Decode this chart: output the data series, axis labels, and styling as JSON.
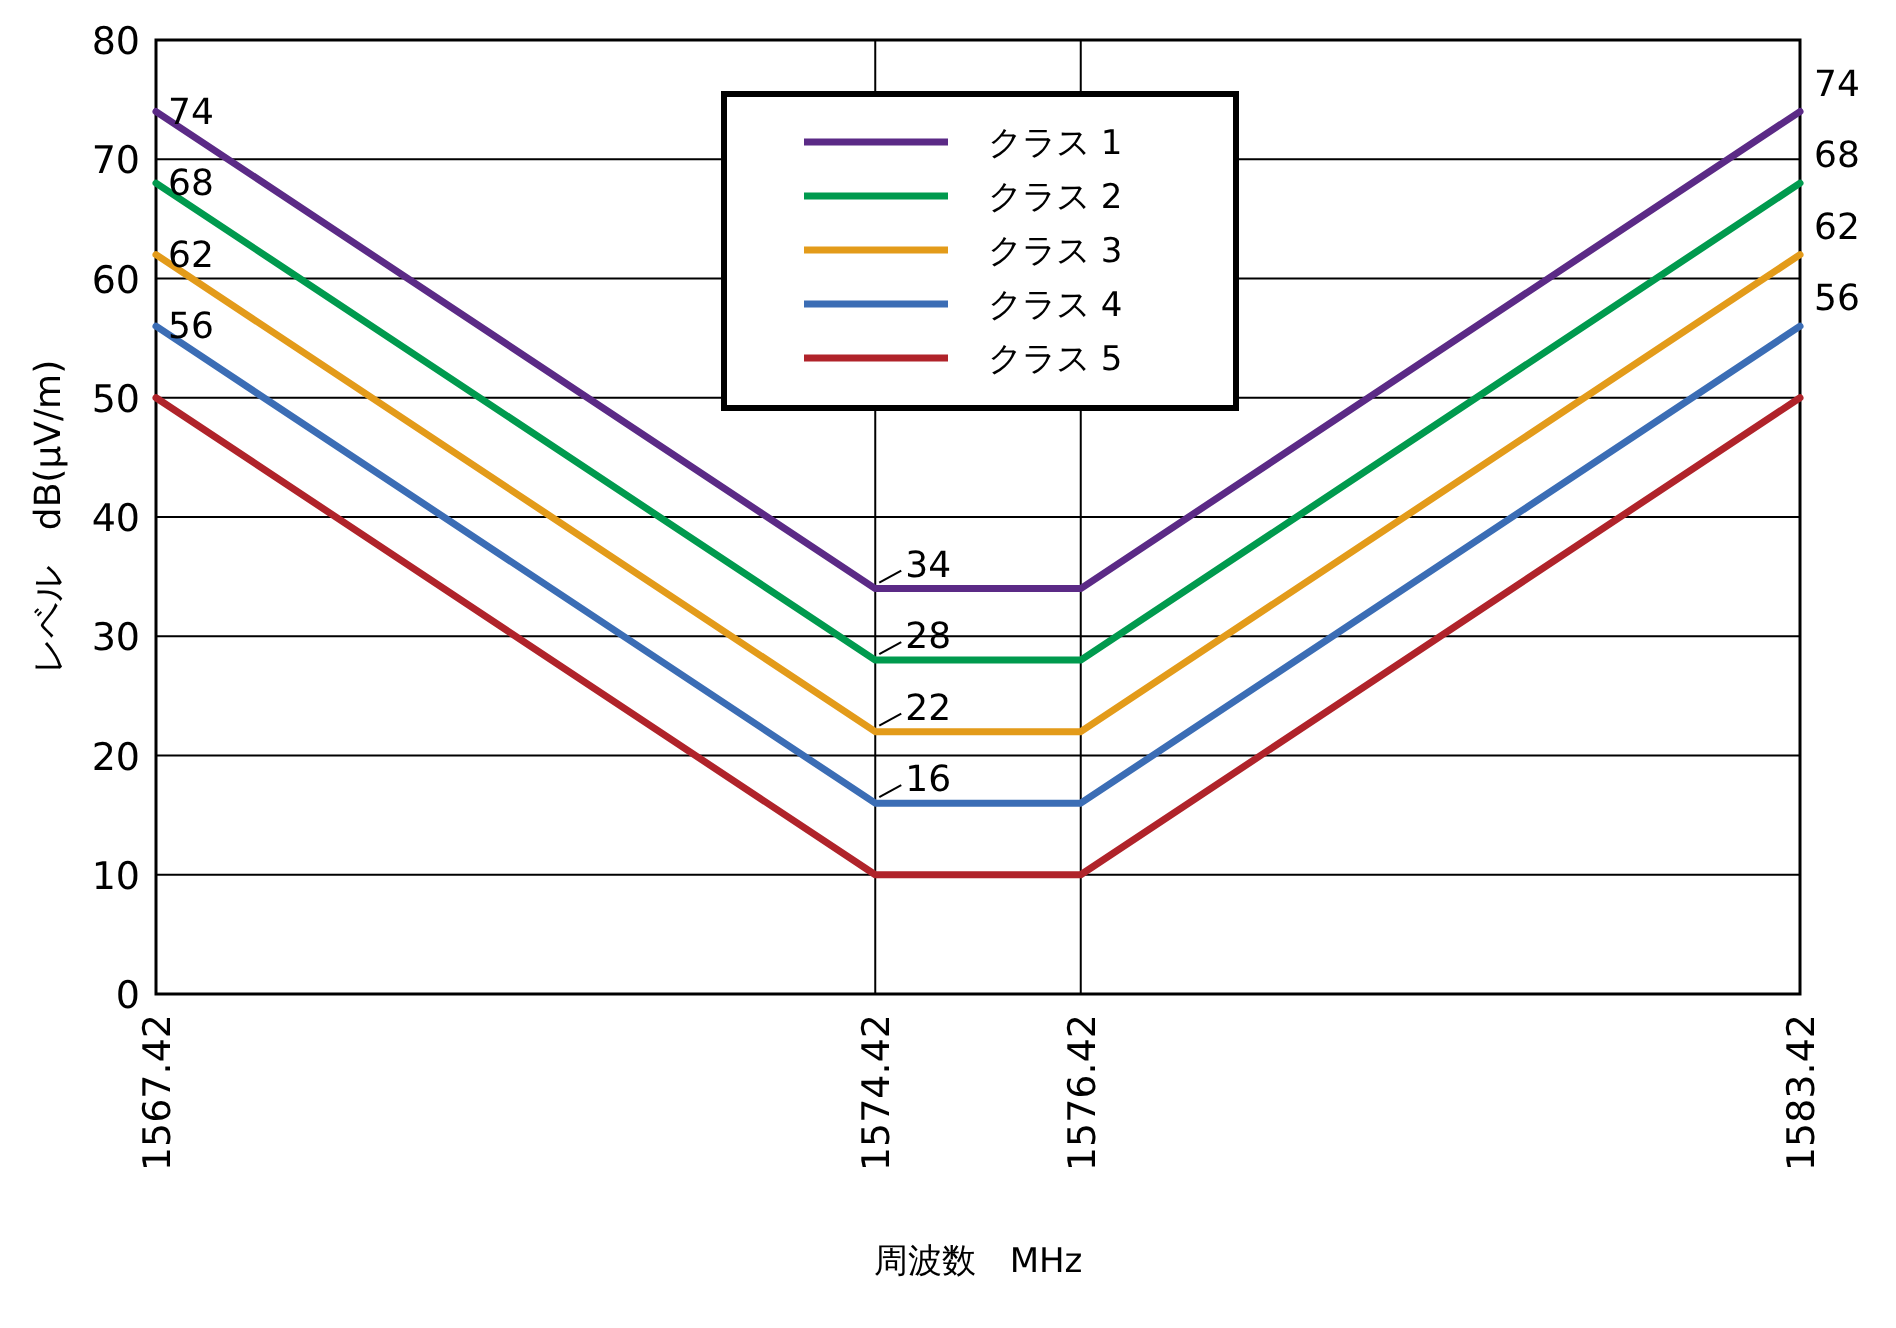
{
  "chart_data": {
    "type": "line",
    "xlabel": "周波数　MHz",
    "ylabel": "レベル　dB(μV/m)",
    "x": [
      1567.42,
      1574.42,
      1576.42,
      1583.42
    ],
    "xlim": [
      1567.42,
      1583.42
    ],
    "xticks": [
      1567.42,
      1574.42,
      1576.42,
      1583.42
    ],
    "ylim": [
      0,
      80
    ],
    "yticks": [
      0,
      10,
      20,
      30,
      40,
      50,
      60,
      70,
      80
    ],
    "grid": true,
    "legend": "top",
    "marker": "none",
    "line_style": "solid",
    "series": [
      {
        "name": "クラス 1",
        "color": "#5b2a86",
        "values": [
          74,
          34,
          34,
          74
        ],
        "value_labels": [
          "74",
          "34",
          null,
          "74"
        ]
      },
      {
        "name": "クラス 2",
        "color": "#009a4e",
        "values": [
          68,
          28,
          28,
          68
        ],
        "value_labels": [
          "68",
          "28",
          null,
          "68"
        ]
      },
      {
        "name": "クラス 3",
        "color": "#e39b1a",
        "values": [
          62,
          22,
          22,
          62
        ],
        "value_labels": [
          "62",
          "22",
          null,
          "62"
        ]
      },
      {
        "name": "クラス 4",
        "color": "#3b6db5",
        "values": [
          56,
          16,
          16,
          56
        ],
        "value_labels": [
          "56",
          "16",
          null,
          "56"
        ]
      },
      {
        "name": "クラス 5",
        "color": "#b0232a",
        "values": [
          50,
          10,
          10,
          50
        ]
      }
    ]
  }
}
